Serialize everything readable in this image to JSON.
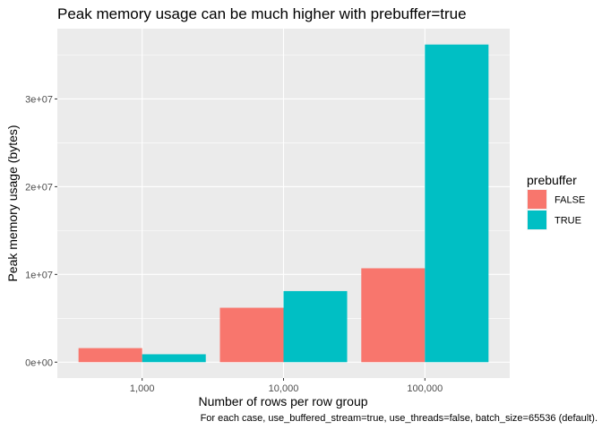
{
  "chart_data": {
    "type": "bar",
    "title": "Peak memory usage can be much higher with prebuffer=true",
    "xlabel": "Number of rows per row group",
    "ylabel": "Peak memory usage (bytes)",
    "caption": "For each case, use_buffered_stream=true, use_threads=false, batch_size=65536 (default).",
    "categories": [
      "1,000",
      "10,000",
      "100,000"
    ],
    "series": [
      {
        "name": "FALSE",
        "color": "#F8766D",
        "values": [
          1600000,
          6200000,
          10700000
        ]
      },
      {
        "name": "TRUE",
        "color": "#00BFC4",
        "values": [
          900000,
          8100000,
          36200000
        ]
      }
    ],
    "ylim": [
      -1810000,
      38010000
    ],
    "yticks": [
      {
        "value": 0,
        "label": "0e+00"
      },
      {
        "value": 10000000,
        "label": "1e+07"
      },
      {
        "value": 20000000,
        "label": "2e+07"
      },
      {
        "value": 30000000,
        "label": "3e+07"
      }
    ],
    "legend": {
      "title": "prebuffer",
      "position": "right"
    },
    "grid": true,
    "panel_color": "#EBEBEB"
  }
}
